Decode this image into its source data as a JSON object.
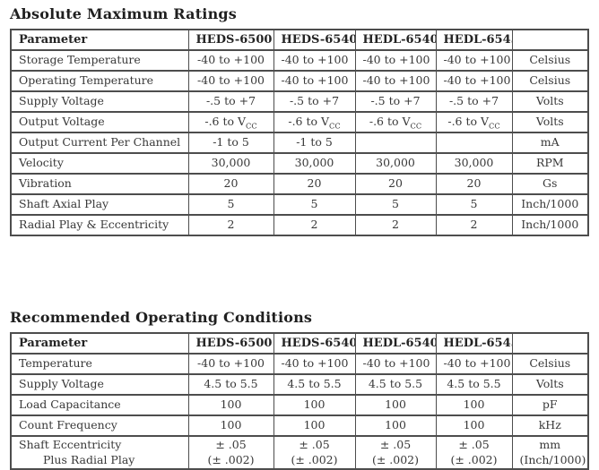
{
  "page": {
    "background_color": "#ffffff",
    "text_color": "#383838",
    "border_color": "#4d4d4d"
  },
  "tables": [
    {
      "title": "Absolute Maximum Ratings",
      "columns": [
        "Parameter",
        "HEDS-6500",
        "HEDS-6540",
        "HEDL-6540",
        "HEDL-6545",
        ""
      ],
      "rows": [
        [
          "Storage Temperature",
          "-40 to +100",
          "-40 to +100",
          "-40 to +100",
          "-40 to +100",
          "Celsius"
        ],
        [
          "Operating Temperature",
          "-40 to +100",
          "-40 to +100",
          "-40 to +100",
          "-40 to +100",
          "Celsius"
        ],
        [
          "Supply Voltage",
          "-.5 to +7",
          "-.5 to +7",
          "-.5 to +7",
          "-.5 to +7",
          "Volts"
        ],
        [
          "Output Voltage",
          "-.6 to V_CC",
          "-.6 to V_CC",
          "-.6 to V_CC",
          "-.6 to V_CC",
          "Volts"
        ],
        [
          "Output Current Per Channel",
          "-1 to 5",
          "-1 to 5",
          "",
          "",
          "mA"
        ],
        [
          "Velocity",
          "30,000",
          "30,000",
          "30,000",
          "30,000",
          "RPM"
        ],
        [
          "Vibration",
          "20",
          "20",
          "20",
          "20",
          "Gs"
        ],
        [
          "Shaft Axial Play",
          "5",
          "5",
          "5",
          "5",
          "Inch/1000"
        ],
        [
          "Radial Play & Eccentricity",
          "2",
          "2",
          "2",
          "2",
          "Inch/1000"
        ]
      ]
    },
    {
      "title": "Recommended Operating Conditions",
      "columns": [
        "Parameter",
        "HEDS-6500",
        "HEDS-6540",
        "HEDL-6540",
        "HEDL-6545",
        ""
      ],
      "rows": [
        [
          "Temperature",
          "-40 to +100",
          "-40 to +100",
          "-40 to +100",
          "-40 to +100",
          "Celsius"
        ],
        [
          "Supply Voltage",
          "4.5 to 5.5",
          "4.5 to 5.5",
          "4.5 to 5.5",
          "4.5 to 5.5",
          "Volts"
        ],
        [
          "Load Capacitance",
          "100",
          "100",
          "100",
          "100",
          "pF"
        ],
        [
          "Count Frequency",
          "100",
          "100",
          "100",
          "100",
          "kHz"
        ],
        [
          [
            "Shaft Eccentricity",
            "Plus Radial Play"
          ],
          [
            "± .05",
            "(± .002)"
          ],
          [
            "± .05",
            "(± .002)"
          ],
          [
            "± .05",
            "(± .002)"
          ],
          [
            "± .05",
            "(± .002)"
          ],
          [
            "mm",
            "(Inch/1000)"
          ]
        ]
      ]
    }
  ]
}
